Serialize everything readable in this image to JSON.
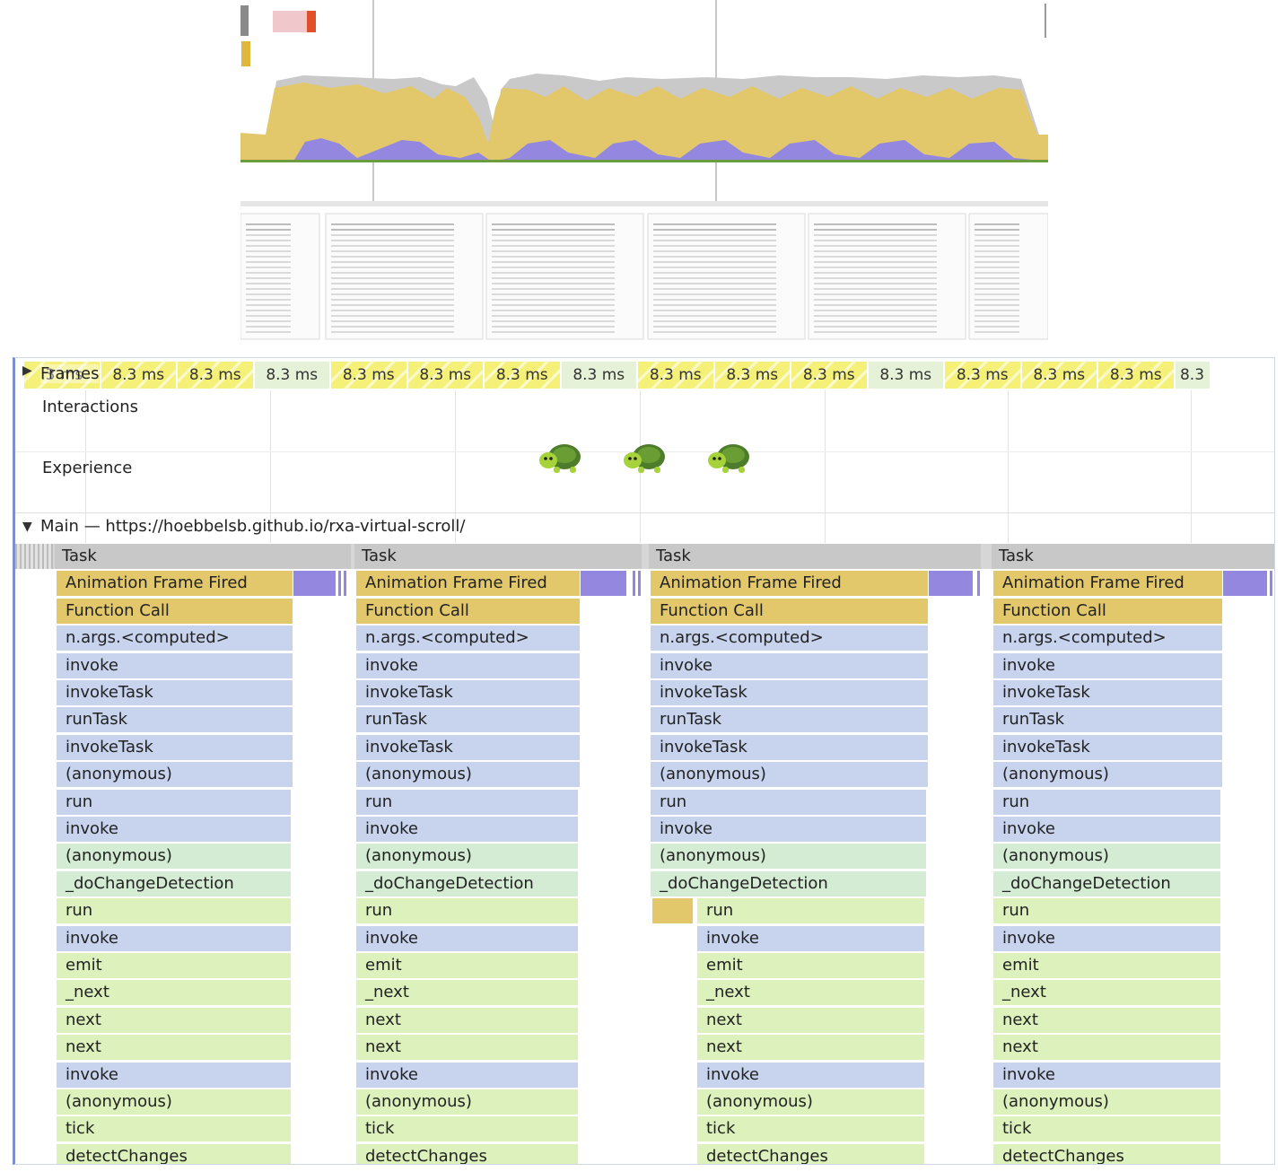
{
  "frames": {
    "label": "Frames",
    "items": [
      {
        "text": ".3 ms",
        "state": "partial"
      },
      {
        "text": "8.3 ms",
        "state": "partial"
      },
      {
        "text": "8.3 ms",
        "state": "partial"
      },
      {
        "text": "8.3 ms",
        "state": "ok"
      },
      {
        "text": "8.3 ms",
        "state": "partial"
      },
      {
        "text": "8.3 ms",
        "state": "partial"
      },
      {
        "text": "8.3 ms",
        "state": "partial"
      },
      {
        "text": "8.3 ms",
        "state": "ok"
      },
      {
        "text": "8.3 ms",
        "state": "partial"
      },
      {
        "text": "8.3 ms",
        "state": "partial"
      },
      {
        "text": "8.3 ms",
        "state": "partial"
      },
      {
        "text": "8.3 ms",
        "state": "ok"
      },
      {
        "text": "8.3 ms",
        "state": "partial"
      },
      {
        "text": "8.3 ms",
        "state": "partial"
      },
      {
        "text": "8.3 ms",
        "state": "partial"
      },
      {
        "text": "8.3",
        "state": "ok"
      }
    ]
  },
  "tracks": {
    "interactions": "Interactions",
    "experience": "Experience",
    "main_thread": "Main — https://hoebbelsb.github.io/rxa-virtual-scroll/"
  },
  "icons": {
    "slow_interaction": "turtle-icon",
    "expand": "triangle-right-icon",
    "collapse": "triangle-down-icon"
  },
  "task_label": "Task",
  "call_stack": [
    {
      "name": "Animation Frame Fired",
      "color": "yellow"
    },
    {
      "name": "Function Call",
      "color": "yellow"
    },
    {
      "name": "n.args.<computed>",
      "color": "blue"
    },
    {
      "name": "invoke",
      "color": "blue"
    },
    {
      "name": "invokeTask",
      "color": "blue"
    },
    {
      "name": "runTask",
      "color": "blue"
    },
    {
      "name": "invokeTask",
      "color": "blue"
    },
    {
      "name": "(anonymous)",
      "color": "blue"
    },
    {
      "name": "run",
      "color": "blue"
    },
    {
      "name": "invoke",
      "color": "blue"
    },
    {
      "name": "(anonymous)",
      "color": "teal"
    },
    {
      "name": "_doChangeDetection",
      "color": "teal"
    },
    {
      "name": "run",
      "color": "green"
    },
    {
      "name": "invoke",
      "color": "blue"
    },
    {
      "name": "emit",
      "color": "green"
    },
    {
      "name": "_next",
      "color": "green"
    },
    {
      "name": "next",
      "color": "green"
    },
    {
      "name": "next",
      "color": "green"
    },
    {
      "name": "invoke",
      "color": "blue"
    },
    {
      "name": "(anonymous)",
      "color": "green"
    },
    {
      "name": "tick",
      "color": "green"
    },
    {
      "name": "detectChanges",
      "color": "green"
    }
  ],
  "colors": {
    "scripting": "#e2c86b",
    "rendering": "#9387e0",
    "idle": "#c8c8c8",
    "js_blue": "#c8d4ee",
    "js_green": "#dcf1bc",
    "js_teal": "#d3ecd3"
  }
}
